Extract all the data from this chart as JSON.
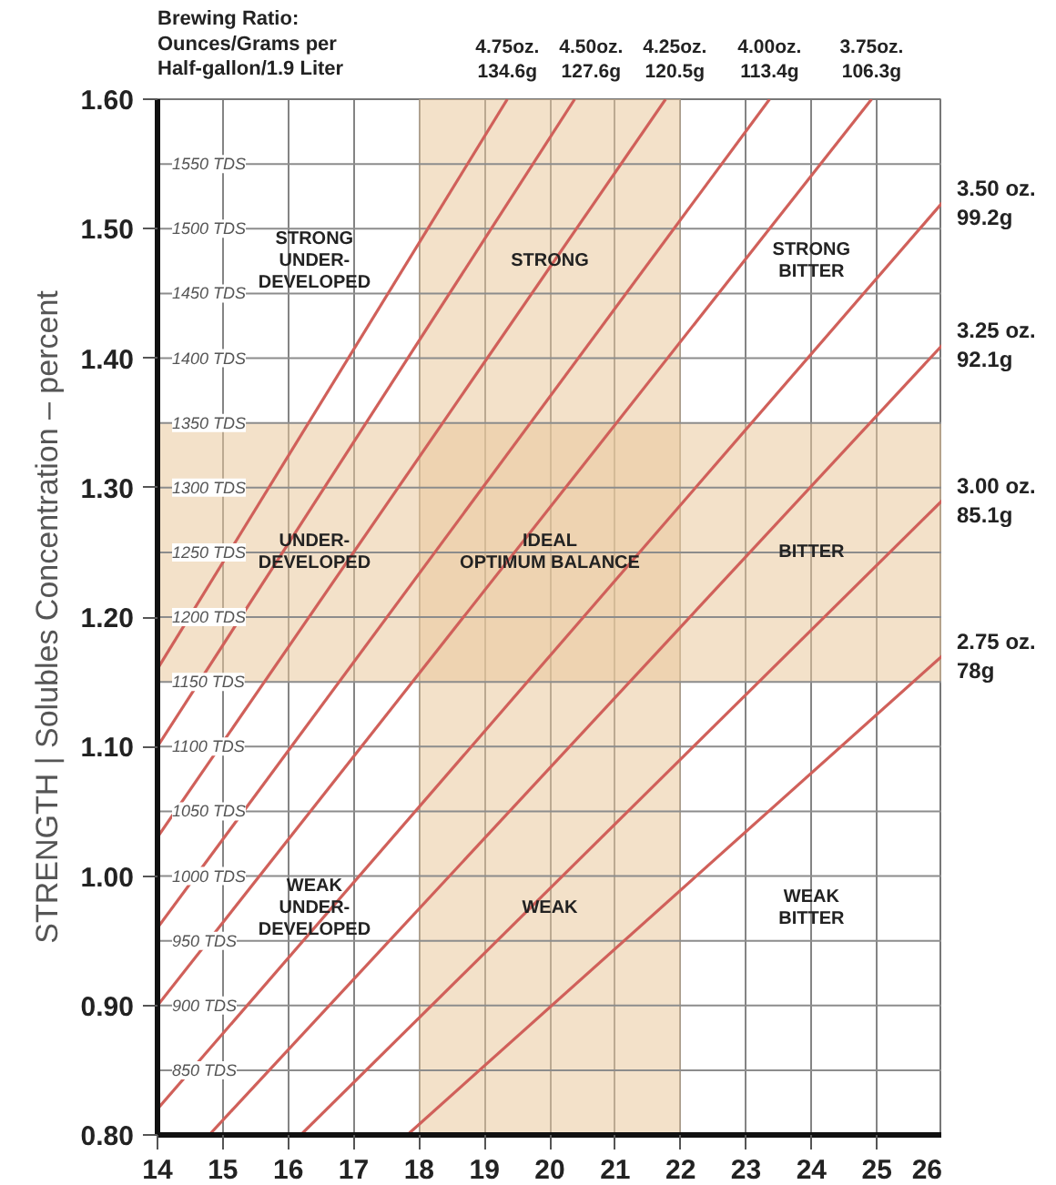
{
  "chart_data": {
    "type": "line",
    "legend_title": "Brewing Ratio:\nOunces/Grams per\nHalf-gallon/1.9 Liter",
    "ylabel": "STRENGTH | Solubles Concentration – percent",
    "xlim": [
      14,
      26
    ],
    "ylim": [
      0.8,
      1.6
    ],
    "xticks": [
      14,
      15,
      16,
      17,
      18,
      19,
      20,
      21,
      22,
      23,
      24,
      25,
      26
    ],
    "yticks": [
      {
        "value": 0.8,
        "label": "0.80"
      },
      {
        "value": 0.9,
        "label": "0.90"
      },
      {
        "value": 1.0,
        "label": "1.00"
      },
      {
        "value": 1.1,
        "label": "1.10"
      },
      {
        "value": 1.2,
        "label": "1.20"
      },
      {
        "value": 1.3,
        "label": "1.30"
      },
      {
        "value": 1.4,
        "label": "1.40"
      },
      {
        "value": 1.5,
        "label": "1.50"
      },
      {
        "value": 1.6,
        "label": "1.60"
      }
    ],
    "grid": "x",
    "line_style": "solid",
    "series": [
      {
        "name": "4.75oz.\n134.6g",
        "color": "#d0605a",
        "x": [
          14,
          19.35
        ],
        "values": [
          1.16,
          1.6
        ]
      },
      {
        "name": "4.50oz.\n127.6g",
        "color": "#d0605a",
        "x": [
          14,
          20.38
        ],
        "values": [
          1.1,
          1.6
        ]
      },
      {
        "name": "4.25oz.\n120.5g",
        "color": "#d0605a",
        "x": [
          14,
          21.77
        ],
        "values": [
          1.03,
          1.6
        ]
      },
      {
        "name": "4.00oz.\n113.4g",
        "color": "#d0605a",
        "x": [
          14,
          23.36
        ],
        "values": [
          0.96,
          1.6
        ]
      },
      {
        "name": "3.75oz.\n106.3g",
        "color": "#d0605a",
        "x": [
          14,
          24.92
        ],
        "values": [
          0.9,
          1.6
        ]
      },
      {
        "name": "3.50 oz.\n99.2g",
        "color": "#d0605a",
        "x": [
          14,
          26
        ],
        "values": [
          0.82,
          1.52
        ]
      },
      {
        "name": "3.25 oz.\n92.1g",
        "color": "#d0605a",
        "x": [
          14.79,
          26
        ],
        "values": [
          0.8,
          1.41
        ]
      },
      {
        "name": "3.00 oz.\n85.1g",
        "color": "#d0605a",
        "x": [
          16.19,
          26
        ],
        "values": [
          0.8,
          1.29
        ]
      },
      {
        "name": "2.75 oz.\n78g",
        "color": "#d0605a",
        "x": [
          17.82,
          26
        ],
        "values": [
          0.8,
          1.17
        ]
      }
    ],
    "bands": [
      {
        "axis": "x",
        "from": 18,
        "to": 22,
        "color": "#e9c99c"
      },
      {
        "axis": "y",
        "from": 1.15,
        "to": 1.35,
        "color": "#e9c99c"
      }
    ],
    "ref_lines": [
      {
        "axis": "y",
        "value": 1.55,
        "label": "1550 TDS",
        "color": "#8c8c8c"
      },
      {
        "axis": "y",
        "value": 1.5,
        "label": "1500 TDS",
        "color": "#8c8c8c"
      },
      {
        "axis": "y",
        "value": 1.45,
        "label": "1450 TDS",
        "color": "#8c8c8c"
      },
      {
        "axis": "y",
        "value": 1.4,
        "label": "1400 TDS",
        "color": "#8c8c8c"
      },
      {
        "axis": "y",
        "value": 1.35,
        "label": "1350 TDS",
        "color": "#8c8c8c"
      },
      {
        "axis": "y",
        "value": 1.3,
        "label": "1300 TDS",
        "color": "#8c8c8c"
      },
      {
        "axis": "y",
        "value": 1.25,
        "label": "1250 TDS",
        "color": "#8c8c8c"
      },
      {
        "axis": "y",
        "value": 1.2,
        "label": "1200 TDS",
        "color": "#8c8c8c"
      },
      {
        "axis": "y",
        "value": 1.15,
        "label": "1150 TDS",
        "color": "#8c8c8c"
      },
      {
        "axis": "y",
        "value": 1.1,
        "label": "1100 TDS",
        "color": "#8c8c8c"
      },
      {
        "axis": "y",
        "value": 1.05,
        "label": "1050 TDS",
        "color": "#8c8c8c"
      },
      {
        "axis": "y",
        "value": 1.0,
        "label": "1000 TDS",
        "color": "#8c8c8c"
      },
      {
        "axis": "y",
        "value": 0.95,
        "label": "950 TDS",
        "color": "#8c8c8c"
      },
      {
        "axis": "y",
        "value": 0.9,
        "label": "900 TDS",
        "color": "#8c8c8c"
      },
      {
        "axis": "y",
        "value": 0.85,
        "label": "850 TDS",
        "color": "#8c8c8c"
      }
    ],
    "annotations": [
      "STRONG\nUNDER-\nDEVELOPED",
      "STRONG",
      "STRONG\nBITTER",
      "UNDER-\nDEVELOPED",
      "IDEAL\nOPTIMUM BALANCE",
      "BITTER",
      "WEAK\nUNDER-\nDEVELOPED",
      "WEAK",
      "WEAK\nBITTER"
    ]
  }
}
